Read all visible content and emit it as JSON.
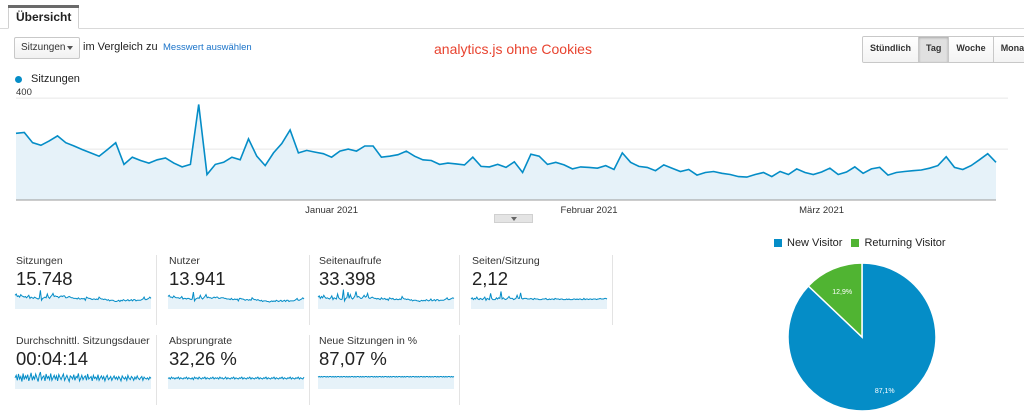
{
  "tab": {
    "label": "Übersicht"
  },
  "controls": {
    "metric_select": "Sitzungen",
    "compare_text": "im Vergleich zu",
    "select_metric_link": "Messwert auswählen"
  },
  "annotation": "analytics.js ohne Cookies",
  "periods": [
    "Stündlich",
    "Tag",
    "Woche",
    "Monat"
  ],
  "active_period": "Tag",
  "colors": {
    "primary": "#058dc7",
    "returning": "#50b432",
    "annotation": "#e8432f"
  },
  "chart_data": [
    {
      "type": "area",
      "series": [
        {
          "name": "Sitzungen",
          "values": [
            262,
            265,
            225,
            215,
            232,
            252,
            225,
            212,
            198,
            185,
            172,
            198,
            225,
            140,
            168,
            155,
            145,
            158,
            165,
            145,
            130,
            140,
            375,
            100,
            140,
            148,
            168,
            158,
            240,
            172,
            135,
            185,
            222,
            275,
            185,
            195,
            188,
            182,
            168,
            192,
            200,
            192,
            212,
            212,
            168,
            172,
            178,
            192,
            172,
            158,
            155,
            140,
            145,
            142,
            138,
            168,
            132,
            130,
            140,
            128,
            150,
            108,
            180,
            172,
            140,
            148,
            138,
            122,
            130,
            128,
            125,
            135,
            120,
            185,
            148,
            132,
            128,
            115,
            138,
            125,
            112,
            120,
            98,
            108,
            112,
            105,
            100,
            92,
            90,
            100,
            108,
            92,
            112,
            100,
            122,
            108,
            100,
            110,
            125,
            100,
            110,
            130,
            105,
            122,
            128,
            98,
            108,
            112,
            115,
            118,
            125,
            135,
            170,
            128,
            120,
            135,
            158,
            182,
            148
          ],
          "color": "#058dc7"
        }
      ],
      "yticks": [
        200,
        400
      ],
      "ylim": [
        0,
        440
      ],
      "xticks": [
        {
          "label": "Januar 2021",
          "index": 38
        },
        {
          "label": "Februar 2021",
          "index": 69
        },
        {
          "label": "März 2021",
          "index": 97
        }
      ]
    },
    {
      "type": "pie",
      "slices": [
        {
          "name": "New Visitor",
          "value": 87.1,
          "label": "87,1%",
          "color": "#058dc7"
        },
        {
          "name": "Returning Visitor",
          "value": 12.9,
          "label": "12,9%",
          "color": "#50b432"
        }
      ]
    }
  ],
  "metrics": [
    {
      "label": "Sitzungen",
      "value": "15.748",
      "spark": [
        22,
        24,
        20,
        21,
        19,
        23,
        21,
        20,
        19,
        20,
        18,
        20,
        22,
        17,
        19,
        18,
        17,
        19,
        18,
        17,
        16,
        17,
        30,
        14,
        17,
        18,
        19,
        18,
        24,
        19,
        17,
        20,
        22,
        25,
        20,
        21,
        20,
        20,
        18,
        20,
        21,
        20,
        21,
        21,
        18,
        18,
        19,
        20,
        19,
        18,
        18,
        17,
        17,
        17,
        16,
        18,
        16,
        16,
        17,
        16,
        17,
        14,
        19,
        18,
        17,
        17,
        16,
        15,
        16,
        16,
        15,
        16,
        15,
        19,
        17,
        16,
        16,
        15,
        16,
        15,
        14,
        15,
        13,
        14,
        14,
        14,
        13,
        12,
        12,
        13,
        14,
        12,
        14,
        13,
        15,
        14,
        13,
        14,
        15,
        13,
        14,
        15,
        13,
        15,
        15,
        13,
        14,
        14,
        14,
        14,
        15,
        16,
        19,
        15,
        15,
        16,
        17,
        19,
        17
      ]
    },
    {
      "label": "Nutzer",
      "value": "13.941",
      "spark": [
        20,
        22,
        19,
        19,
        18,
        21,
        19,
        18,
        18,
        18,
        17,
        18,
        20,
        16,
        17,
        17,
        16,
        17,
        17,
        16,
        15,
        16,
        27,
        13,
        16,
        17,
        18,
        17,
        22,
        18,
        16,
        18,
        20,
        23,
        18,
        19,
        18,
        18,
        17,
        18,
        19,
        18,
        19,
        19,
        17,
        17,
        18,
        18,
        18,
        17,
        17,
        16,
        16,
        16,
        15,
        17,
        15,
        15,
        16,
        15,
        16,
        13,
        17,
        17,
        16,
        16,
        15,
        14,
        15,
        15,
        14,
        15,
        14,
        18,
        16,
        15,
        15,
        14,
        15,
        14,
        13,
        14,
        12,
        13,
        13,
        13,
        12,
        12,
        11,
        12,
        13,
        12,
        13,
        12,
        14,
        13,
        12,
        13,
        14,
        12,
        13,
        14,
        12,
        14,
        14,
        12,
        13,
        13,
        13,
        13,
        14,
        15,
        17,
        14,
        14,
        15,
        16,
        18,
        16
      ]
    },
    {
      "label": "Seitenaufrufe",
      "value": "33.398",
      "spark": [
        19,
        21,
        17,
        20,
        18,
        22,
        19,
        17,
        18,
        17,
        16,
        18,
        21,
        15,
        18,
        17,
        16,
        24,
        18,
        16,
        15,
        16,
        31,
        13,
        17,
        18,
        27,
        17,
        23,
        18,
        16,
        18,
        21,
        28,
        19,
        20,
        19,
        17,
        17,
        19,
        22,
        19,
        20,
        25,
        18,
        17,
        18,
        19,
        18,
        17,
        17,
        16,
        17,
        16,
        15,
        18,
        16,
        16,
        17,
        15,
        16,
        14,
        18,
        17,
        16,
        17,
        15,
        15,
        16,
        15,
        15,
        16,
        15,
        20,
        17,
        16,
        16,
        15,
        16,
        15,
        14,
        15,
        13,
        14,
        14,
        14,
        13,
        13,
        12,
        13,
        14,
        13,
        14,
        13,
        15,
        14,
        13,
        14,
        16,
        13,
        14,
        15,
        13,
        15,
        15,
        13,
        14,
        14,
        14,
        14,
        15,
        16,
        18,
        15,
        15,
        16,
        17,
        18,
        17
      ]
    },
    {
      "label": "Seiten/Sitzung",
      "value": "2,12",
      "spark": [
        16,
        18,
        15,
        17,
        16,
        19,
        16,
        15,
        17,
        16,
        15,
        17,
        19,
        14,
        17,
        16,
        15,
        25,
        17,
        15,
        15,
        15,
        18,
        16,
        18,
        17,
        28,
        16,
        18,
        16,
        15,
        16,
        18,
        20,
        17,
        17,
        17,
        15,
        16,
        17,
        22,
        17,
        17,
        26,
        17,
        16,
        17,
        17,
        17,
        16,
        16,
        16,
        17,
        16,
        15,
        17,
        16,
        16,
        16,
        15,
        15,
        15,
        16,
        16,
        16,
        17,
        15,
        15,
        16,
        15,
        16,
        16,
        15,
        17,
        16,
        16,
        16,
        15,
        16,
        16,
        15,
        15,
        15,
        16,
        15,
        16,
        15,
        15,
        15,
        16,
        16,
        15,
        16,
        15,
        16,
        16,
        15,
        15,
        17,
        15,
        16,
        16,
        15,
        16,
        16,
        15,
        16,
        16,
        16,
        15,
        16,
        16,
        17,
        16,
        16,
        16,
        17,
        17,
        16
      ]
    },
    {
      "label": "Durchschnittl. Sitzungsdauer",
      "value": "00:04:14",
      "spark": [
        18,
        22,
        14,
        24,
        16,
        20,
        12,
        25,
        15,
        21,
        17,
        23,
        13,
        19,
        26,
        14,
        20,
        16,
        24,
        18,
        12,
        22,
        27,
        15,
        19,
        21,
        13,
        24,
        17,
        20,
        15,
        25,
        14,
        18,
        22,
        16,
        21,
        13,
        23,
        19,
        15,
        20,
        24,
        14,
        18,
        22,
        17,
        12,
        21,
        19,
        16,
        23,
        14,
        20,
        18,
        25,
        13,
        17,
        22,
        15,
        19,
        21,
        14,
        24,
        16,
        18,
        20,
        13,
        22,
        17,
        19,
        15,
        23,
        14,
        18,
        21,
        16,
        20,
        13,
        19,
        22,
        15,
        17,
        20,
        14,
        18,
        21,
        16,
        19,
        15,
        20,
        17,
        13,
        21,
        18,
        16,
        19,
        14,
        22,
        17,
        15,
        20,
        18,
        14,
        19,
        16,
        21,
        17,
        15,
        18,
        20,
        14,
        19,
        17,
        16,
        18,
        15,
        19,
        17
      ]
    },
    {
      "label": "Absprungrate",
      "value": "32,26 %",
      "spark": [
        17,
        18,
        16,
        19,
        17,
        18,
        16,
        18,
        17,
        19,
        16,
        18,
        17,
        16,
        18,
        17,
        19,
        16,
        18,
        17,
        16,
        18,
        15,
        19,
        17,
        18,
        16,
        19,
        17,
        16,
        18,
        17,
        19,
        16,
        18,
        17,
        16,
        18,
        17,
        19,
        16,
        18,
        17,
        18,
        16,
        19,
        17,
        18,
        16,
        17,
        19,
        16,
        18,
        17,
        16,
        18,
        17,
        19,
        16,
        18,
        17,
        16,
        18,
        17,
        19,
        16,
        18,
        17,
        16,
        18,
        17,
        19,
        16,
        18,
        17,
        16,
        18,
        17,
        19,
        16,
        18,
        17,
        16,
        18,
        17,
        19,
        16,
        18,
        17,
        16,
        18,
        17,
        19,
        16,
        18,
        17,
        16,
        18,
        17,
        19,
        16,
        18,
        17,
        16,
        18,
        17,
        19,
        16,
        18,
        17,
        16,
        18,
        17,
        19,
        16,
        18,
        17,
        16,
        19
      ]
    },
    {
      "label": "Neue Sitzungen in %",
      "value": "87,07 %",
      "spark": [
        19,
        20,
        19,
        20,
        19,
        20,
        20,
        19,
        20,
        19,
        20,
        20,
        19,
        20,
        19,
        20,
        19,
        20,
        20,
        19,
        20,
        19,
        20,
        20,
        19,
        20,
        19,
        20,
        19,
        20,
        20,
        19,
        20,
        19,
        20,
        20,
        19,
        20,
        19,
        20,
        19,
        20,
        20,
        19,
        20,
        19,
        20,
        20,
        19,
        20,
        19,
        20,
        19,
        20,
        20,
        19,
        20,
        19,
        20,
        20,
        19,
        20,
        19,
        20,
        19,
        20,
        20,
        19,
        20,
        19,
        20,
        20,
        19,
        20,
        19,
        20,
        19,
        20,
        20,
        19,
        20,
        19,
        20,
        20,
        19,
        20,
        19,
        20,
        19,
        20,
        20,
        19,
        20,
        19,
        20,
        20,
        19,
        20,
        19,
        20,
        19,
        20,
        20,
        19,
        20,
        19,
        20,
        20,
        19,
        20,
        19,
        20,
        19,
        20,
        20,
        19,
        20,
        19,
        20
      ]
    }
  ]
}
